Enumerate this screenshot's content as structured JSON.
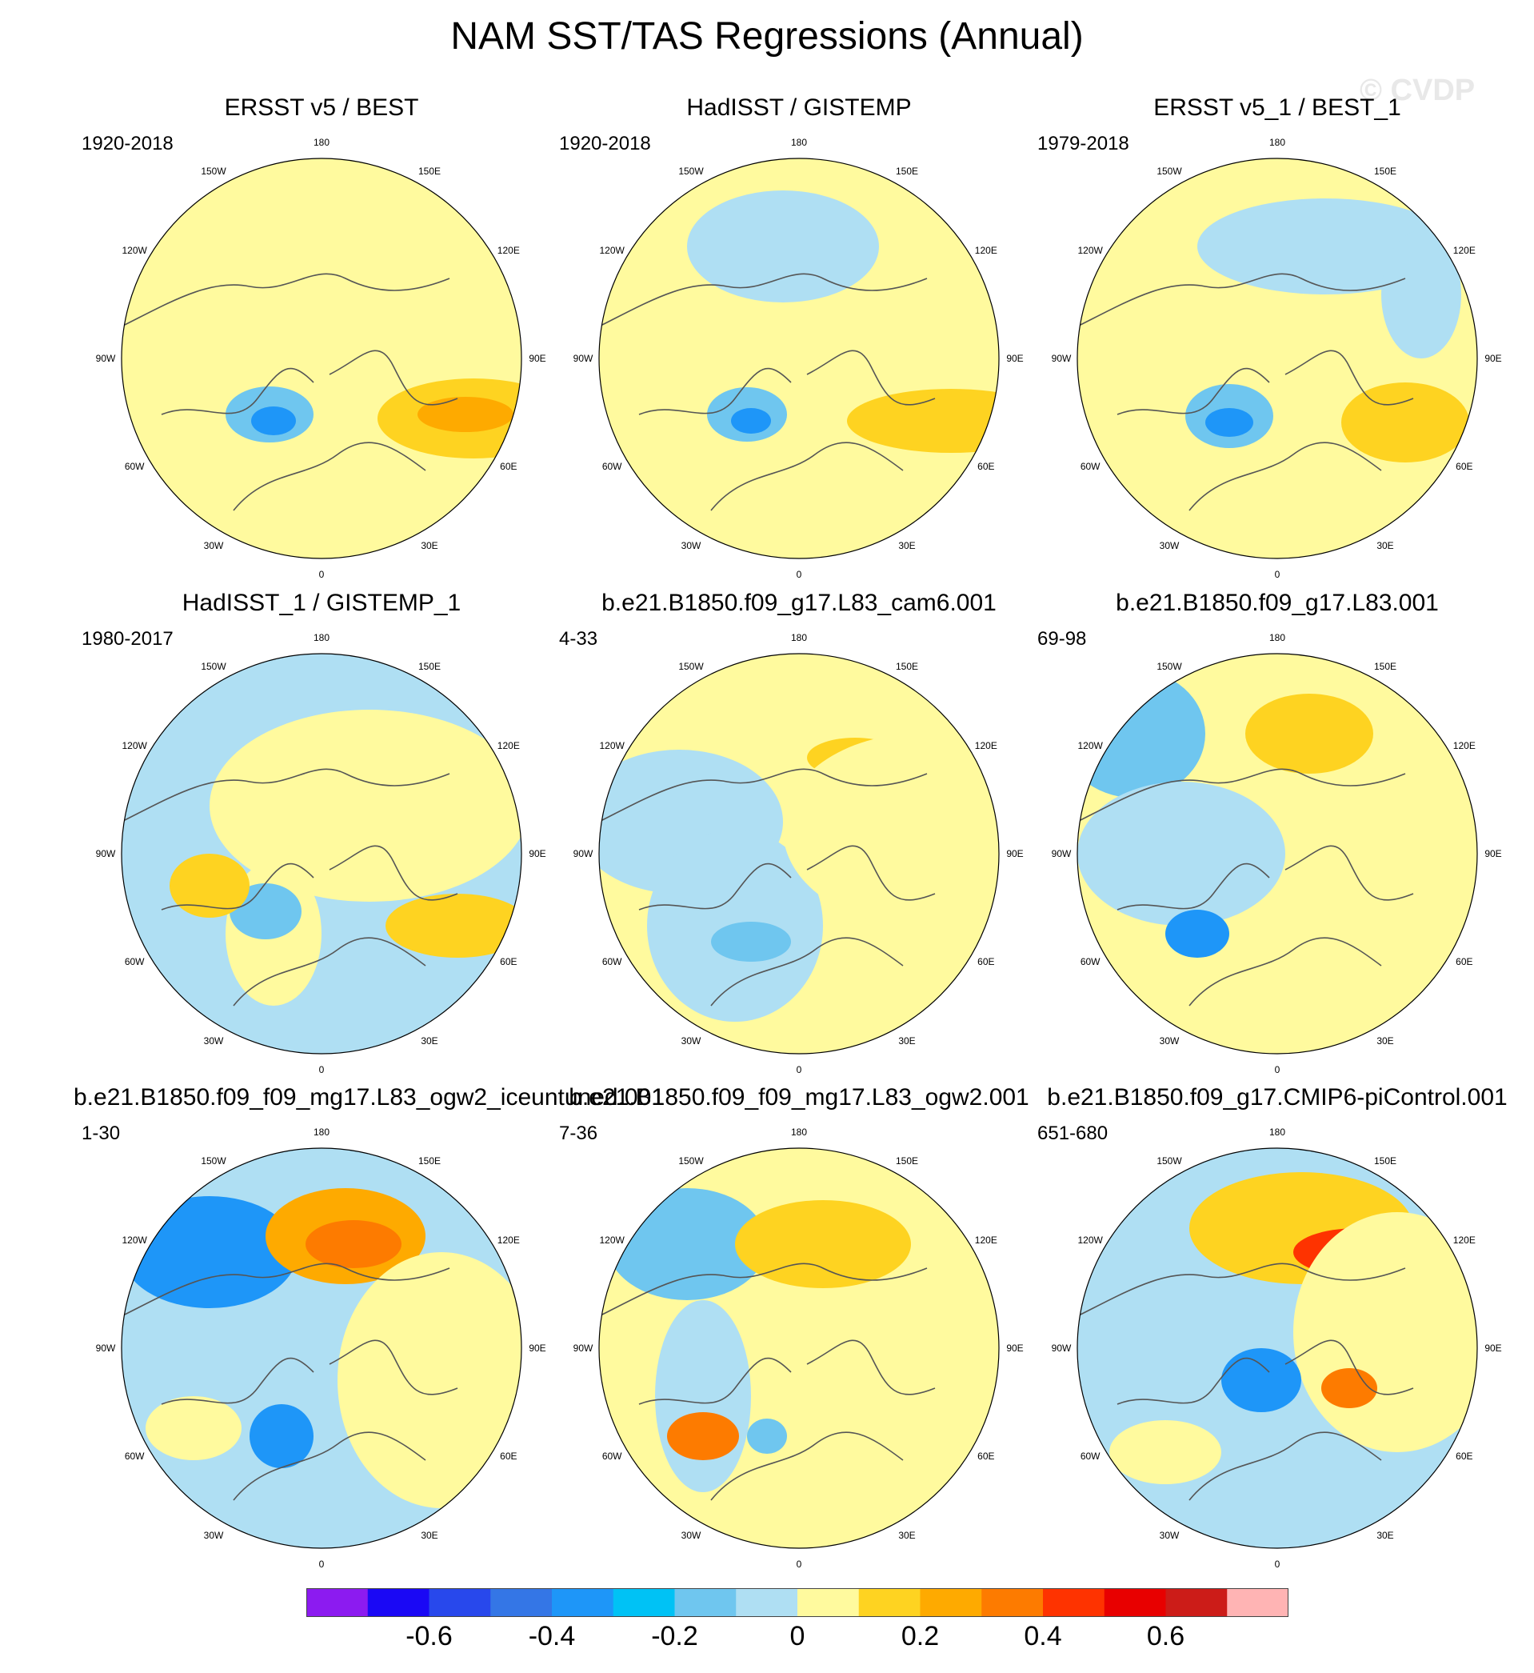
{
  "title": "NAM SST/TAS Regressions (Annual)",
  "watermark": "© CVDP",
  "lon_labels": [
    "180",
    "150E",
    "120E",
    "90E",
    "60E",
    "30E",
    "0",
    "30W",
    "60W",
    "90W",
    "120W",
    "150W"
  ],
  "panels": [
    {
      "title": "ERSST v5 / BEST",
      "period": "1920-2018"
    },
    {
      "title": "HadISST / GISTEMP",
      "period": "1920-2018"
    },
    {
      "title": "ERSST v5_1 / BEST_1",
      "period": "1979-2018"
    },
    {
      "title": "HadISST_1 / GISTEMP_1",
      "period": "1980-2017"
    },
    {
      "title": "b.e21.B1850.f09_g17.L83_cam6.001",
      "period": "4-33"
    },
    {
      "title": "b.e21.B1850.f09_g17.L83.001",
      "period": "69-98"
    },
    {
      "title": "b.e21.B1850.f09_f09_mg17.L83_ogw2_iceuntuned.001",
      "period": "1-30"
    },
    {
      "title": "b.e21.B1850.f09_f09_mg17.L83_ogw2.001",
      "period": "7-36"
    },
    {
      "title": "b.e21.B1850.f09_g17.CMIP6-piControl.001",
      "period": "651-680"
    }
  ],
  "colorbar": {
    "colors": [
      "#8c1bf0",
      "#1a08f5",
      "#2848ec",
      "#3476e6",
      "#1e96f8",
      "#00c2f5",
      "#6fc6ef",
      "#afdff3",
      "#fffa9e",
      "#fed321",
      "#feaa00",
      "#fd7b00",
      "#fe3300",
      "#e80000",
      "#cc1c18",
      "#ffb4b4"
    ],
    "tick_labels": [
      "-0.6",
      "-0.4",
      "-0.2",
      "0",
      "0.2",
      "0.4",
      "0.6"
    ],
    "tick_values": [
      -0.6,
      -0.4,
      -0.2,
      0,
      0.2,
      0.4,
      0.6
    ],
    "min": -0.8,
    "max": 0.8
  }
}
